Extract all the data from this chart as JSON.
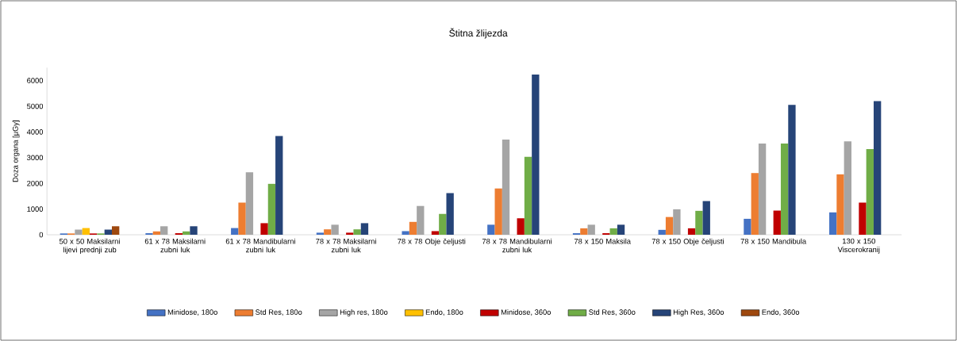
{
  "chart_data": {
    "type": "bar",
    "title": "Štitna žlijezda",
    "ylabel": "Doza organa [µGy]",
    "categories": [
      "50 x 50 Maksilarni lijevi prednji zub",
      "61 x 78 Maksilarni zubni luk",
      "61 x 78 Mandibularni zubni luk",
      "78 x 78 Maksilarni zubni luk",
      "78 x 78 Obje čeljusti",
      "78 x 78 Mandibularni zubni luk",
      "78 x 150 Maksila",
      "78 x 150 Obje čeljusti",
      "78 x 150 Mandibula",
      "130 x 150 Viscerokranij"
    ],
    "series": [
      {
        "name": "Minidose, 180o",
        "color": "#4472c4",
        "values": [
          50,
          60,
          260,
          80,
          140,
          390,
          60,
          190,
          620,
          870
        ]
      },
      {
        "name": "Std Res, 180o",
        "color": "#ed7d31",
        "values": [
          50,
          130,
          1250,
          210,
          500,
          1800,
          250,
          690,
          2400,
          2350
        ]
      },
      {
        "name": "High res, 180o",
        "color": "#a5a5a5",
        "values": [
          200,
          330,
          2430,
          390,
          1120,
          3700,
          390,
          990,
          3550,
          3630
        ]
      },
      {
        "name": "Endo, 180o",
        "color": "#ffc000",
        "values": [
          260,
          null,
          null,
          null,
          null,
          null,
          null,
          null,
          null,
          null
        ]
      },
      {
        "name": "Minidose, 360o",
        "color": "#c00000",
        "values": [
          50,
          60,
          450,
          80,
          140,
          640,
          60,
          250,
          940,
          1250
        ]
      },
      {
        "name": "Std Res, 360o",
        "color": "#70ad47",
        "values": [
          50,
          130,
          1980,
          210,
          810,
          3030,
          250,
          930,
          3550,
          3330
        ]
      },
      {
        "name": "High Res, 360o",
        "color": "#264478",
        "values": [
          200,
          330,
          3840,
          450,
          1620,
          6230,
          390,
          1310,
          5050,
          5200
        ]
      },
      {
        "name": "Endo, 360o",
        "color": "#9e480e",
        "values": [
          330,
          null,
          null,
          null,
          null,
          null,
          null,
          null,
          null,
          null
        ]
      }
    ],
    "ylim": [
      0,
      6500
    ],
    "yticks": [
      0,
      1000,
      2000,
      3000,
      4000,
      5000,
      6000
    ],
    "legend": "bottom"
  }
}
